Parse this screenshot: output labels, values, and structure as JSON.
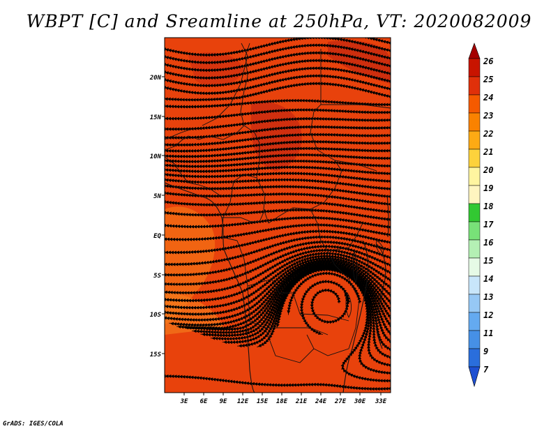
{
  "title": "WBPT [C] and Sreamline at 250hPa, VT: 2020082009",
  "credit": "GrADS: IGES/COLA",
  "map": {
    "lat_labels": [
      "20N",
      "15N",
      "10N",
      "5N",
      "EQ",
      "5S",
      "10S",
      "15S"
    ],
    "lon_labels": [
      "3E",
      "6E",
      "9E",
      "12E",
      "15E",
      "18E",
      "21E",
      "24E",
      "27E",
      "30E",
      "33E"
    ],
    "field_fill": "#e8420c",
    "streamline_color": "#000000"
  },
  "colorbar": {
    "levels": [
      "26",
      "25",
      "24",
      "23",
      "22",
      "21",
      "20",
      "19",
      "18",
      "17",
      "16",
      "15",
      "14",
      "13",
      "12",
      "11",
      "9",
      "7"
    ],
    "colors": [
      "#a50000",
      "#c81400",
      "#e0300a",
      "#f55a00",
      "#fa8200",
      "#fdaa14",
      "#fdd23c",
      "#fff5a0",
      "#fff5c0",
      "#32c832",
      "#78e178",
      "#b4f0b4",
      "#e6fae6",
      "#c8e6fa",
      "#96c8f5",
      "#64aaf0",
      "#4690e6",
      "#2a6edc",
      "#1e50d2"
    ]
  }
}
